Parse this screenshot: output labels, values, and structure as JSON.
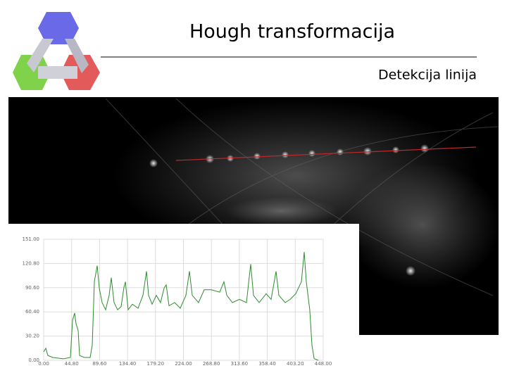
{
  "title": "Hough transformacija",
  "subtitle": "Detekcija linija",
  "chart_data": {
    "type": "line",
    "x": [
      0,
      3.4,
      6.8,
      14.7,
      31.6,
      42.9,
      46.3,
      49.7,
      51.9,
      55.3,
      57.6,
      65.5,
      74.5,
      77.9,
      81.3,
      85.8,
      89.2,
      93.7,
      99.3,
      104.9,
      108.3,
      112.8,
      118.5,
      124.1,
      128.7,
      131,
      135.4,
      142.2,
      151.2,
      159.1,
      164.8,
      168.1,
      173.8,
      180.6,
      187.3,
      193,
      196.4,
      200.9,
      209.9,
      218.9,
      228,
      233.6,
      238.1,
      248.3,
      257.3,
      268.6,
      282.1,
      288.9,
      293.5,
      302.4,
      313.7,
      325,
      331.8,
      336.3,
      345.3,
      356.6,
      364.5,
      372.4,
      376.9,
      387.1,
      395,
      404,
      413,
      417.5,
      420.9,
      426.5,
      430,
      433.4,
      440.1
    ],
    "series": [
      {
        "color": "#2e8b2e",
        "values": [
          10.5,
          15,
          6,
          3.5,
          1.8,
          3.5,
          50,
          59,
          45.6,
          37,
          6,
          3.5,
          3.5,
          19,
          98,
          118,
          90,
          72,
          63,
          81,
          103,
          72,
          63,
          67,
          91,
          98,
          63,
          70,
          65,
          81,
          111,
          81,
          70,
          81,
          72,
          90,
          94,
          68,
          72,
          65,
          81,
          111,
          81,
          72,
          88,
          88,
          85,
          98,
          81,
          72,
          76,
          72,
          120,
          81,
          72,
          83,
          76,
          111,
          81,
          72,
          76,
          83,
          98,
          135,
          98,
          63,
          19,
          2,
          0
        ]
      }
    ],
    "xlim": [
      0,
      448
    ],
    "ylim": [
      0,
      151
    ],
    "xticks": [
      {
        "value": 0,
        "label": "0.00"
      },
      {
        "value": 44.8,
        "label": "44.80"
      },
      {
        "value": 89.6,
        "label": "89.60"
      },
      {
        "value": 134.4,
        "label": "134.40"
      },
      {
        "value": 179.2,
        "label": "179.20"
      },
      {
        "value": 224,
        "label": "224.00"
      },
      {
        "value": 268.8,
        "label": "268.80"
      },
      {
        "value": 313.6,
        "label": "313.60"
      },
      {
        "value": 358.4,
        "label": "358.40"
      },
      {
        "value": 403.2,
        "label": "403.20"
      },
      {
        "value": 448,
        "label": "448.00"
      }
    ],
    "yticks": [
      {
        "value": 0,
        "label": "0.00"
      },
      {
        "value": 30.2,
        "label": "30.20"
      },
      {
        "value": 60.4,
        "label": "60.40"
      },
      {
        "value": 90.6,
        "label": "90.60"
      },
      {
        "value": 120.8,
        "label": "120.80"
      },
      {
        "value": 151,
        "label": "151.00"
      }
    ],
    "grid": true
  }
}
